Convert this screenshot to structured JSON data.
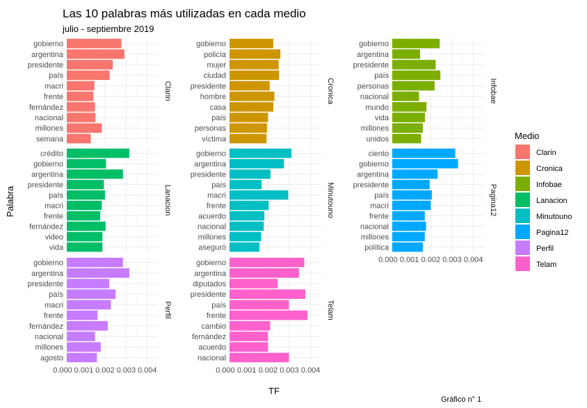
{
  "chart_data": {
    "type": "bar",
    "title": "Las 10 palabras más utilizadas en cada medio",
    "subtitle": "julio - septiembre 2019",
    "xlabel": "TF",
    "ylabel": "Palabra",
    "xlim": [
      0,
      0.0045
    ],
    "x_ticks": [
      0.0,
      0.001,
      0.002,
      0.003,
      0.004
    ],
    "x_tick_labels": [
      "0.000",
      "0.001",
      "0.002",
      "0.003",
      "0.004"
    ],
    "legend_title": "Medio",
    "legend_position": "right",
    "grid": true,
    "caption": "Gráfico n° 1",
    "series": [
      {
        "name": "Clarin",
        "color": "#F8766D",
        "categories": [
          "gobierno",
          "argentina",
          "presidente",
          "país",
          "macri",
          "frente",
          "fernández",
          "nacional",
          "millones",
          "semana"
        ],
        "values": [
          0.00278,
          0.00292,
          0.00237,
          0.00222,
          0.0015,
          0.00145,
          0.00153,
          0.00155,
          0.00185,
          0.00133
        ]
      },
      {
        "name": "Cronica",
        "color": "#CD9600",
        "categories": [
          "gobierno",
          "policía",
          "mujer",
          "ciudad",
          "presidente",
          "hombre",
          "casa",
          "país",
          "personas",
          "víctima"
        ],
        "values": [
          0.00225,
          0.00258,
          0.0025,
          0.00252,
          0.00208,
          0.0023,
          0.00225,
          0.002,
          0.00195,
          0.00193
        ]
      },
      {
        "name": "Infobae",
        "color": "#7CAE00",
        "categories": [
          "gobierno",
          "argentina",
          "presidente",
          "país",
          "personas",
          "nacional",
          "mundo",
          "vida",
          "millones",
          "unidos"
        ],
        "values": [
          0.00242,
          0.0015,
          0.00223,
          0.00245,
          0.00218,
          0.00145,
          0.0018,
          0.00173,
          0.00163,
          0.00155
        ]
      },
      {
        "name": "Lanacion",
        "color": "#00BE67",
        "categories": [
          "crédito",
          "gobierno",
          "argentina",
          "presidente",
          "país",
          "macri",
          "frente",
          "fernández",
          "video",
          "vida"
        ],
        "values": [
          0.00315,
          0.00205,
          0.00285,
          0.00195,
          0.002,
          0.00185,
          0.00178,
          0.00203,
          0.00188,
          0.00188
        ]
      },
      {
        "name": "Minutouno",
        "color": "#00BFC4",
        "categories": [
          "gobierno",
          "argentina",
          "presidente",
          "país",
          "macri",
          "frente",
          "acuerdo",
          "nacional",
          "millones",
          "aseguró"
        ],
        "values": [
          0.0031,
          0.00275,
          0.00212,
          0.0017,
          0.00295,
          0.00203,
          0.00183,
          0.0018,
          0.00168,
          0.0016
        ]
      },
      {
        "name": "Pagina12",
        "color": "#00A9FF",
        "categories": [
          "ciento",
          "gobierno",
          "argentina",
          "presidente",
          "país",
          "macri",
          "frente",
          "nacional",
          "millones",
          "política"
        ],
        "values": [
          0.00315,
          0.00328,
          0.00232,
          0.00195,
          0.00205,
          0.002,
          0.00172,
          0.00178,
          0.00172,
          0.00163
        ]
      },
      {
        "name": "Perfil",
        "color": "#C77CFF",
        "categories": [
          "gobierno",
          "argentina",
          "presidente",
          "país",
          "macri",
          "frente",
          "fernández",
          "nacional",
          "millones",
          "agosto"
        ],
        "values": [
          0.00285,
          0.00315,
          0.0022,
          0.0025,
          0.00228,
          0.00165,
          0.00213,
          0.00153,
          0.0018,
          0.00162
        ]
      },
      {
        "name": "Telam",
        "color": "#FF61CC",
        "categories": [
          "gobierno",
          "argentina",
          "diputados",
          "presidente",
          "país",
          "frente",
          "cambio",
          "fernández",
          "acuerdo",
          "nacional"
        ],
        "values": [
          0.0037,
          0.00345,
          0.00245,
          0.00375,
          0.00298,
          0.00385,
          0.0021,
          0.002,
          0.002,
          0.00298
        ]
      }
    ]
  }
}
